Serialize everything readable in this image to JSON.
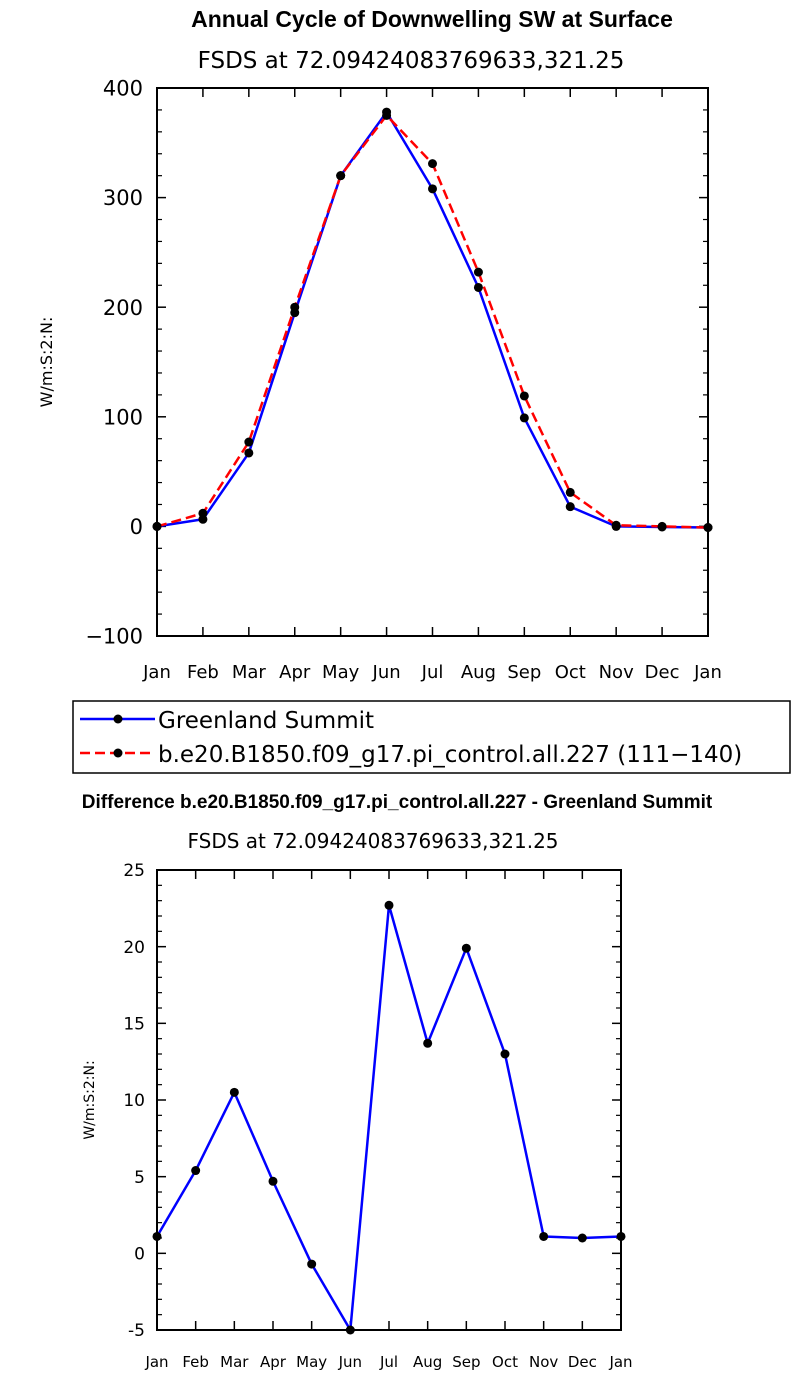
{
  "chart_data": [
    {
      "type": "line",
      "title": "Annual Cycle of Downwelling SW at Surface",
      "subtitle": "FSDS at 72.09424083769633,321.25",
      "xlabel": "",
      "ylabel": "W/m:S:2:N:",
      "ylim": [
        -100,
        400
      ],
      "yticks": [
        "−100",
        "0",
        "100",
        "200",
        "300",
        "400"
      ],
      "yticks_values": [
        -100,
        0,
        100,
        200,
        300,
        400
      ],
      "categories": [
        "Jan",
        "Feb",
        "Mar",
        "Apr",
        "May",
        "Jun",
        "Jul",
        "Aug",
        "Sep",
        "Oct",
        "Nov",
        "Dec",
        "Jan"
      ],
      "series": [
        {
          "name": "Greenland Summit",
          "color": "#0000ff",
          "dash": "solid",
          "values": [
            0,
            6.5,
            67,
            195,
            320,
            378,
            308,
            218,
            99,
            18,
            0,
            -0.5,
            -1
          ]
        },
        {
          "name": "b.e20.B1850.f09_g17.pi_control.all.227 (111−140)",
          "color": "#ff0000",
          "dash": "dashed",
          "values": [
            0,
            12,
            77,
            200,
            320,
            375,
            331,
            232,
            119,
            31,
            1,
            0,
            -1
          ]
        }
      ],
      "legend": "below"
    },
    {
      "type": "line",
      "title": "Difference b.e20.B1850.f09_g17.pi_control.all.227 - Greenland Summit",
      "subtitle": "FSDS at 72.09424083769633,321.25",
      "xlabel": "",
      "ylabel": "W/m:S:2:N:",
      "ylim": [
        -5,
        25
      ],
      "yticks": [
        "-5",
        "0",
        "5",
        "10",
        "15",
        "20",
        "25"
      ],
      "yticks_values": [
        -5,
        0,
        5,
        10,
        15,
        20,
        25
      ],
      "categories": [
        "Jan",
        "Feb",
        "Mar",
        "Apr",
        "May",
        "Jun",
        "Jul",
        "Aug",
        "Sep",
        "Oct",
        "Nov",
        "Dec",
        "Jan"
      ],
      "series": [
        {
          "name": "Difference",
          "color": "#0000ff",
          "dash": "solid",
          "values": [
            1.1,
            5.4,
            10.5,
            4.7,
            -0.7,
            -5.0,
            22.7,
            13.7,
            19.9,
            13.0,
            1.1,
            1.0,
            1.1
          ]
        }
      ]
    }
  ]
}
